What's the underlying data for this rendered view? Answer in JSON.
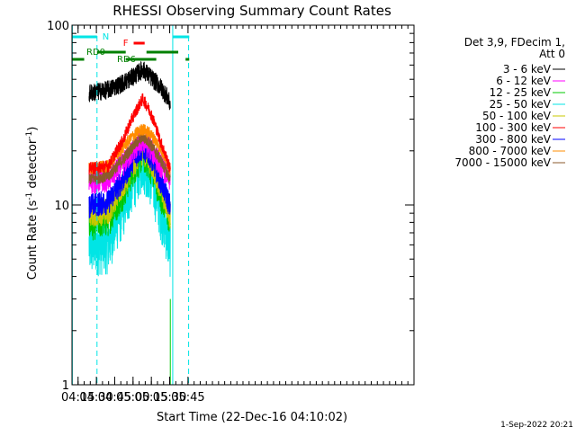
{
  "chart_data": {
    "type": "line",
    "title": "RHESSI Observing Summary Count Rates",
    "xlabel": "Start Time (22-Dec-16 04:10:02)",
    "ylabel_parts": [
      "Count Rate (s",
      "-1",
      " detector",
      "-1",
      ")"
    ],
    "y_scale": "log",
    "ylim": [
      1,
      100
    ],
    "xlim_minutes": [
      250.03,
      530.0
    ],
    "y_ticks": [
      {
        "value": 1,
        "label": "1"
      },
      {
        "value": 10,
        "label": "10"
      },
      {
        "value": 100,
        "label": "100"
      }
    ],
    "x_ticks": [
      {
        "minute": 255,
        "label": "04:15"
      },
      {
        "minute": 270,
        "label": "04:30"
      },
      {
        "minute": 285,
        "label": "04:45"
      },
      {
        "minute": 300,
        "label": "05:00"
      },
      {
        "minute": 315,
        "label": "05:15"
      },
      {
        "minute": 330,
        "label": "05:30"
      },
      {
        "minute": 345,
        "label": "05:45"
      }
    ],
    "time_range_minutes": [
      264.0,
      330.5
    ],
    "series": [
      {
        "name": "3 - 6 keV",
        "color": "#000000",
        "profile": [
          [
            264,
            42
          ],
          [
            280,
            44
          ],
          [
            292,
            48
          ],
          [
            302,
            53
          ],
          [
            308,
            57
          ],
          [
            314,
            52
          ],
          [
            322,
            46
          ],
          [
            328,
            40
          ],
          [
            330,
            37
          ]
        ],
        "spread": 0.12
      },
      {
        "name": "6 - 12 keV",
        "color": "#ff00ff",
        "profile": [
          [
            264,
            13.5
          ],
          [
            280,
            14
          ],
          [
            292,
            17
          ],
          [
            302,
            21
          ],
          [
            308,
            23
          ],
          [
            314,
            21
          ],
          [
            322,
            17
          ],
          [
            330,
            14
          ]
        ],
        "spread": 0.16
      },
      {
        "name": "12 - 25 keV",
        "color": "#00c800",
        "profile": [
          [
            264,
            8
          ],
          [
            280,
            8.5
          ],
          [
            292,
            12
          ],
          [
            302,
            17
          ],
          [
            308,
            19.5
          ],
          [
            314,
            17
          ],
          [
            322,
            12
          ],
          [
            330,
            8.5
          ]
        ],
        "spread": 0.22
      },
      {
        "name": "25 - 50 keV",
        "color": "#00e5e5",
        "profile": [
          [
            264,
            6
          ],
          [
            280,
            6.3
          ],
          [
            292,
            10
          ],
          [
            302,
            15
          ],
          [
            308,
            18
          ],
          [
            314,
            15
          ],
          [
            322,
            10
          ],
          [
            330,
            6
          ]
        ],
        "spread": 0.35
      },
      {
        "name": "50 - 100 keV",
        "color": "#c8c800",
        "profile": [
          [
            264,
            9
          ],
          [
            280,
            9.5
          ],
          [
            292,
            13
          ],
          [
            302,
            18
          ],
          [
            308,
            20.5
          ],
          [
            314,
            18
          ],
          [
            322,
            13
          ],
          [
            330,
            9
          ]
        ],
        "spread": 0.18
      },
      {
        "name": "100 - 300 keV",
        "color": "#ff0000",
        "profile": [
          [
            264,
            16
          ],
          [
            280,
            16.5
          ],
          [
            292,
            23
          ],
          [
            302,
            33
          ],
          [
            308,
            39
          ],
          [
            314,
            33
          ],
          [
            322,
            23
          ],
          [
            330,
            16
          ]
        ],
        "spread": 0.08
      },
      {
        "name": "300 - 800 keV",
        "color": "#0000ff",
        "profile": [
          [
            264,
            10
          ],
          [
            280,
            10.5
          ],
          [
            292,
            14
          ],
          [
            302,
            19
          ],
          [
            308,
            21
          ],
          [
            314,
            19
          ],
          [
            322,
            14
          ],
          [
            330,
            10
          ]
        ],
        "spread": 0.16
      },
      {
        "name": "800 - 7000 keV",
        "color": "#ff8c00",
        "profile": [
          [
            264,
            16
          ],
          [
            280,
            16.5
          ],
          [
            292,
            21
          ],
          [
            302,
            25
          ],
          [
            308,
            26.5
          ],
          [
            314,
            25
          ],
          [
            322,
            21
          ],
          [
            330,
            16
          ]
        ],
        "spread": 0.08
      },
      {
        "name": "7000 - 15000 keV",
        "color": "#8b5a2b",
        "profile": [
          [
            264,
            14
          ],
          [
            280,
            14.5
          ],
          [
            292,
            18
          ],
          [
            302,
            22
          ],
          [
            308,
            24
          ],
          [
            314,
            22
          ],
          [
            322,
            18
          ],
          [
            330,
            14
          ]
        ],
        "spread": 0.08
      }
    ],
    "legend": {
      "header_lines": [
        "Det 3,9, FDecim 1,",
        "Att 0"
      ],
      "placement": "right"
    },
    "annotations": {
      "night": {
        "label": "N",
        "color": "#00e5e5",
        "bars": [
          [
            250.03,
            270.5
          ],
          [
            332.5,
            346
          ]
        ]
      },
      "flare": {
        "label": "F",
        "color": "#ff0000",
        "bars": [
          [
            300.5,
            309.5
          ]
        ]
      },
      "rd0": {
        "label": "RD0",
        "color": "#008000",
        "bars": [
          [
            270.5,
            294
          ],
          [
            311,
            337
          ]
        ]
      },
      "rd6": {
        "label": "RD6",
        "color": "#008000",
        "bars": [
          [
            250.03,
            260
          ],
          [
            294,
            319
          ],
          [
            343,
            346
          ]
        ]
      },
      "vlines_dashed": [
        {
          "minute": 270.5,
          "color": "#00e5e5"
        },
        {
          "minute": 345.5,
          "color": "#00e5e5"
        }
      ],
      "vlines_solid": [
        {
          "minute": 250.3,
          "color": "#00e5e5"
        },
        {
          "minute": 332.5,
          "color": "#00e5e5"
        }
      ]
    },
    "timestamp": "1-Sep-2022 20:21"
  }
}
